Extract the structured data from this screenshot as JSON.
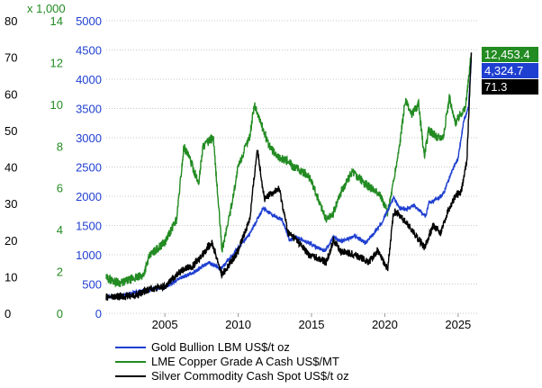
{
  "chart_data": {
    "type": "line",
    "x_ticks": [
      2005,
      2010,
      2015,
      2020,
      2025
    ],
    "x_range": [
      2001,
      2026.3
    ],
    "axes": {
      "silver": {
        "ticks": [
          0,
          10,
          20,
          30,
          40,
          50,
          60,
          70,
          80
        ],
        "range": [
          0,
          80
        ],
        "color": "#000000"
      },
      "copper": {
        "ticks": [
          0,
          2,
          4,
          6,
          8,
          10,
          12,
          14
        ],
        "range": [
          0,
          14
        ],
        "unit_label": "x 1,000",
        "color": "#228b22"
      },
      "gold": {
        "ticks": [
          0,
          500,
          1000,
          1500,
          2000,
          2500,
          3000,
          3500,
          4000,
          4500,
          5000
        ],
        "range": [
          0,
          5000
        ],
        "color": "#1f3fd1"
      }
    },
    "grid": true,
    "legend_position": "bottom-left",
    "series": [
      {
        "name": "Gold Bullion LBM US$/t oz",
        "axis": "gold",
        "color": "#1f3fd1",
        "last_label": "4,324.7",
        "points": [
          [
            2001,
            270
          ],
          [
            2002,
            300
          ],
          [
            2003,
            360
          ],
          [
            2004,
            410
          ],
          [
            2005,
            440
          ],
          [
            2006,
            600
          ],
          [
            2007,
            700
          ],
          [
            2008,
            870
          ],
          [
            2008.8,
            760
          ],
          [
            2009.5,
            950
          ],
          [
            2010,
            1120
          ],
          [
            2010.8,
            1360
          ],
          [
            2011.7,
            1800
          ],
          [
            2012.5,
            1650
          ],
          [
            2013,
            1600
          ],
          [
            2013.5,
            1250
          ],
          [
            2014,
            1300
          ],
          [
            2015,
            1180
          ],
          [
            2015.9,
            1060
          ],
          [
            2016.5,
            1300
          ],
          [
            2017,
            1230
          ],
          [
            2018,
            1320
          ],
          [
            2018.7,
            1200
          ],
          [
            2019,
            1290
          ],
          [
            2019.7,
            1510
          ],
          [
            2020.6,
            1970
          ],
          [
            2021,
            1800
          ],
          [
            2021.5,
            1780
          ],
          [
            2022,
            1850
          ],
          [
            2022.8,
            1650
          ],
          [
            2023,
            1900
          ],
          [
            2023.5,
            1940
          ],
          [
            2024,
            2040
          ],
          [
            2024.5,
            2380
          ],
          [
            2025,
            2650
          ],
          [
            2025.4,
            3300
          ],
          [
            2025.7,
            3500
          ],
          [
            2025.9,
            4324.7
          ]
        ]
      },
      {
        "name": "LME Copper Grade A Cash US$/MT",
        "axis": "copper",
        "color": "#228b22",
        "last_label": "12,453.4",
        "points": [
          [
            2001,
            1.7
          ],
          [
            2001.5,
            1.55
          ],
          [
            2002,
            1.45
          ],
          [
            2003,
            1.7
          ],
          [
            2003.5,
            1.8
          ],
          [
            2004,
            2.8
          ],
          [
            2005,
            3.4
          ],
          [
            2005.8,
            4.5
          ],
          [
            2006.3,
            8.0
          ],
          [
            2006.8,
            7.2
          ],
          [
            2007.3,
            6.2
          ],
          [
            2007.6,
            8.0
          ],
          [
            2008.3,
            8.4
          ],
          [
            2008.9,
            3.0
          ],
          [
            2009.5,
            5.0
          ],
          [
            2010,
            7.0
          ],
          [
            2010.8,
            8.5
          ],
          [
            2011.1,
            10.0
          ],
          [
            2011.7,
            8.8
          ],
          [
            2012.1,
            8.0
          ],
          [
            2012.7,
            7.5
          ],
          [
            2013.3,
            7.3
          ],
          [
            2013.8,
            7.0
          ],
          [
            2014.3,
            6.8
          ],
          [
            2014.8,
            6.6
          ],
          [
            2015.5,
            5.4
          ],
          [
            2016,
            4.5
          ],
          [
            2016.5,
            4.8
          ],
          [
            2017,
            5.8
          ],
          [
            2017.8,
            6.8
          ],
          [
            2018.5,
            6.3
          ],
          [
            2019,
            6.0
          ],
          [
            2019.6,
            5.8
          ],
          [
            2020.2,
            4.8
          ],
          [
            2020.7,
            6.7
          ],
          [
            2021,
            8.0
          ],
          [
            2021.4,
            10.2
          ],
          [
            2021.8,
            9.5
          ],
          [
            2022.3,
            10.0
          ],
          [
            2022.7,
            7.5
          ],
          [
            2023,
            8.8
          ],
          [
            2023.6,
            8.4
          ],
          [
            2024,
            8.5
          ],
          [
            2024.4,
            10.3
          ],
          [
            2024.8,
            9.1
          ],
          [
            2025.2,
            9.6
          ],
          [
            2025.5,
            9.8
          ],
          [
            2025.9,
            12.4534
          ]
        ]
      },
      {
        "name": "Silver Commodity Cash Spot US$/t oz",
        "axis": "silver",
        "color": "#000000",
        "last_label": "71.3",
        "points": [
          [
            2001,
            4.4
          ],
          [
            2002,
            4.6
          ],
          [
            2003,
            4.9
          ],
          [
            2004,
            6.7
          ],
          [
            2005,
            7.2
          ],
          [
            2006,
            11.5
          ],
          [
            2007,
            13.2
          ],
          [
            2008.2,
            19.5
          ],
          [
            2008.9,
            10.5
          ],
          [
            2009.5,
            14
          ],
          [
            2010,
            17
          ],
          [
            2010.8,
            26
          ],
          [
            2011.3,
            45
          ],
          [
            2011.8,
            31
          ],
          [
            2012.3,
            33
          ],
          [
            2012.8,
            34
          ],
          [
            2013.4,
            22
          ],
          [
            2014,
            20
          ],
          [
            2014.8,
            16
          ],
          [
            2015.5,
            15
          ],
          [
            2016,
            14
          ],
          [
            2016.5,
            20
          ],
          [
            2017,
            17
          ],
          [
            2018,
            16
          ],
          [
            2018.9,
            14
          ],
          [
            2019.5,
            17
          ],
          [
            2020.2,
            12
          ],
          [
            2020.6,
            28
          ],
          [
            2021,
            27
          ],
          [
            2021.8,
            23
          ],
          [
            2022.7,
            18
          ],
          [
            2023.3,
            24
          ],
          [
            2023.8,
            22
          ],
          [
            2024.3,
            28
          ],
          [
            2024.8,
            32
          ],
          [
            2025.2,
            33
          ],
          [
            2025.6,
            42
          ],
          [
            2025.9,
            71.3
          ]
        ]
      }
    ]
  }
}
